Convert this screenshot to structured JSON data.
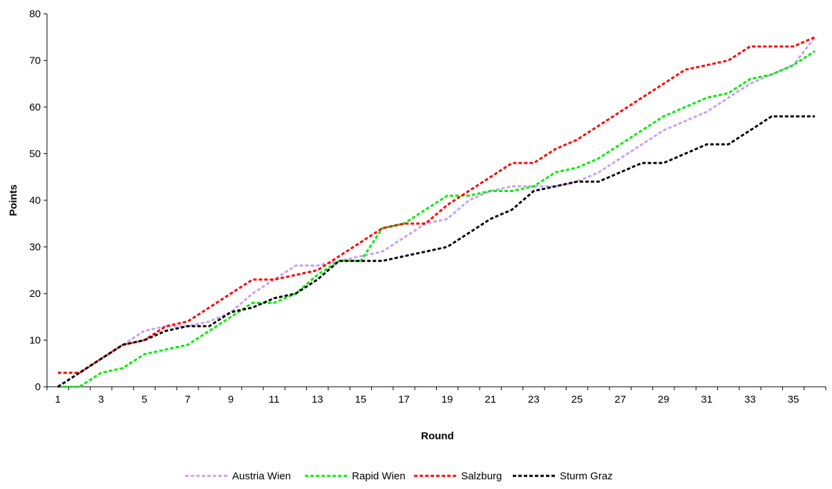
{
  "chart_data": {
    "type": "line",
    "title": "",
    "xlabel": "Round",
    "ylabel": "Points",
    "ylim": [
      0,
      80
    ],
    "yticks": [
      0,
      10,
      20,
      30,
      40,
      50,
      60,
      70,
      80
    ],
    "x": [
      1,
      2,
      3,
      4,
      5,
      6,
      7,
      8,
      9,
      10,
      11,
      12,
      13,
      14,
      15,
      16,
      17,
      18,
      19,
      20,
      21,
      22,
      23,
      24,
      25,
      26,
      27,
      28,
      29,
      30,
      31,
      32,
      33,
      34,
      35,
      36
    ],
    "xtick_labels": [
      "1",
      "3",
      "5",
      "7",
      "9",
      "11",
      "13",
      "15",
      "17",
      "19",
      "21",
      "23",
      "25",
      "27",
      "29",
      "31",
      "33",
      "35"
    ],
    "grid": false,
    "legend_position": "bottom",
    "series": [
      {
        "name": "Austria Wien",
        "color": "#c8a0f0",
        "values": [
          0,
          3,
          6,
          9,
          12,
          13,
          13,
          14,
          16,
          20,
          23,
          26,
          26,
          27,
          28,
          29,
          32,
          35,
          36,
          40,
          42,
          43,
          43,
          43,
          44,
          46,
          49,
          52,
          55,
          57,
          59,
          62,
          65,
          67,
          69,
          75
        ]
      },
      {
        "name": "Rapid Wien",
        "color": "#00ee00",
        "values": [
          0,
          0,
          3,
          4,
          7,
          8,
          9,
          12,
          15,
          18,
          18,
          20,
          24,
          27,
          27,
          34,
          35,
          38,
          41,
          41,
          42,
          42,
          43,
          46,
          47,
          49,
          52,
          55,
          58,
          60,
          62,
          63,
          66,
          67,
          69,
          72
        ]
      },
      {
        "name": "Salzburg",
        "color": "#ff0000",
        "values": [
          3,
          3,
          6,
          9,
          10,
          13,
          14,
          17,
          20,
          23,
          23,
          24,
          25,
          28,
          31,
          34,
          35,
          35,
          39,
          42,
          45,
          48,
          48,
          51,
          53,
          56,
          59,
          62,
          65,
          68,
          69,
          70,
          73,
          73,
          73,
          75
        ]
      },
      {
        "name": "Sturm Graz",
        "color": "#000000",
        "values": [
          0,
          3,
          6,
          9,
          10,
          12,
          13,
          13,
          16,
          17,
          19,
          20,
          23,
          27,
          27,
          27,
          28,
          29,
          30,
          33,
          36,
          38,
          42,
          43,
          44,
          44,
          46,
          48,
          48,
          50,
          52,
          52,
          55,
          58,
          58,
          58
        ]
      }
    ]
  }
}
